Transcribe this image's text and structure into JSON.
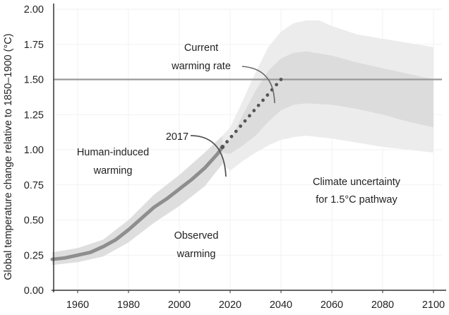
{
  "chart_data": {
    "type": "line",
    "ylabel": "Global temperature change relative to 1850–1900 (°C)",
    "xlabel": "",
    "xlim": [
      1950,
      2102
    ],
    "ylim": [
      0,
      2.0
    ],
    "x_ticks": [
      1960,
      1980,
      2000,
      2020,
      2040,
      2060,
      2080,
      2100
    ],
    "y_ticks": [
      "0.00",
      "0.25",
      "0.50",
      "0.75",
      "1.00",
      "1.25",
      "1.50",
      "1.75",
      "2.00"
    ],
    "grid": true,
    "reference_line": {
      "y": 1.5
    },
    "colors": {
      "line": "#8e8e8e",
      "dots": "#555555",
      "ref": "#999999",
      "outer_band": "#ececec",
      "inner_band": "#dcdcdc",
      "hist_band": "#d6d6d6"
    },
    "human_induced": {
      "x": [
        1950,
        1955,
        1960,
        1965,
        1970,
        1975,
        1980,
        1985,
        1990,
        1995,
        2000,
        2005,
        2010,
        2015,
        2017
      ],
      "y": [
        0.22,
        0.23,
        0.25,
        0.27,
        0.31,
        0.36,
        0.43,
        0.51,
        0.59,
        0.65,
        0.72,
        0.79,
        0.87,
        0.97,
        1.02
      ]
    },
    "historical_band": {
      "x": [
        1950,
        1960,
        1970,
        1980,
        1990,
        2000,
        2010,
        2017
      ],
      "lower": [
        0.18,
        0.2,
        0.24,
        0.34,
        0.48,
        0.6,
        0.74,
        0.9
      ],
      "upper": [
        0.27,
        0.3,
        0.36,
        0.5,
        0.68,
        0.82,
        0.98,
        1.1
      ]
    },
    "current_rate": {
      "x": [
        2017,
        2040
      ],
      "y": [
        1.02,
        1.5
      ]
    },
    "pathway_outer_band": {
      "x": [
        2017,
        2020,
        2025,
        2030,
        2035,
        2040,
        2045,
        2050,
        2055,
        2060,
        2070,
        2080,
        2090,
        2100
      ],
      "lower": [
        0.9,
        0.85,
        0.92,
        0.98,
        1.03,
        1.07,
        1.09,
        1.1,
        1.09,
        1.08,
        1.05,
        1.02,
        1.0,
        0.98
      ],
      "upper": [
        1.1,
        1.16,
        1.35,
        1.55,
        1.73,
        1.84,
        1.9,
        1.92,
        1.92,
        1.88,
        1.82,
        1.79,
        1.76,
        1.73
      ]
    },
    "pathway_inner_band": {
      "x": [
        2017,
        2020,
        2025,
        2030,
        2035,
        2040,
        2045,
        2050,
        2060,
        2070,
        2080,
        2090,
        2100
      ],
      "lower": [
        0.98,
        0.97,
        1.03,
        1.1,
        1.2,
        1.28,
        1.32,
        1.33,
        1.32,
        1.29,
        1.25,
        1.2,
        1.16
      ],
      "upper": [
        1.04,
        1.07,
        1.25,
        1.42,
        1.56,
        1.65,
        1.69,
        1.7,
        1.67,
        1.62,
        1.58,
        1.54,
        1.5
      ]
    },
    "annotations": {
      "current_rate_line1": "Current",
      "current_rate_line2": "warming rate",
      "year_2017": "2017",
      "human_line1": "Human-induced",
      "human_line2": "warming",
      "observed_line1": "Observed",
      "observed_line2": "warming",
      "uncertainty_line1": "Climate uncertainty",
      "uncertainty_line2": "for 1.5°C pathway"
    }
  }
}
